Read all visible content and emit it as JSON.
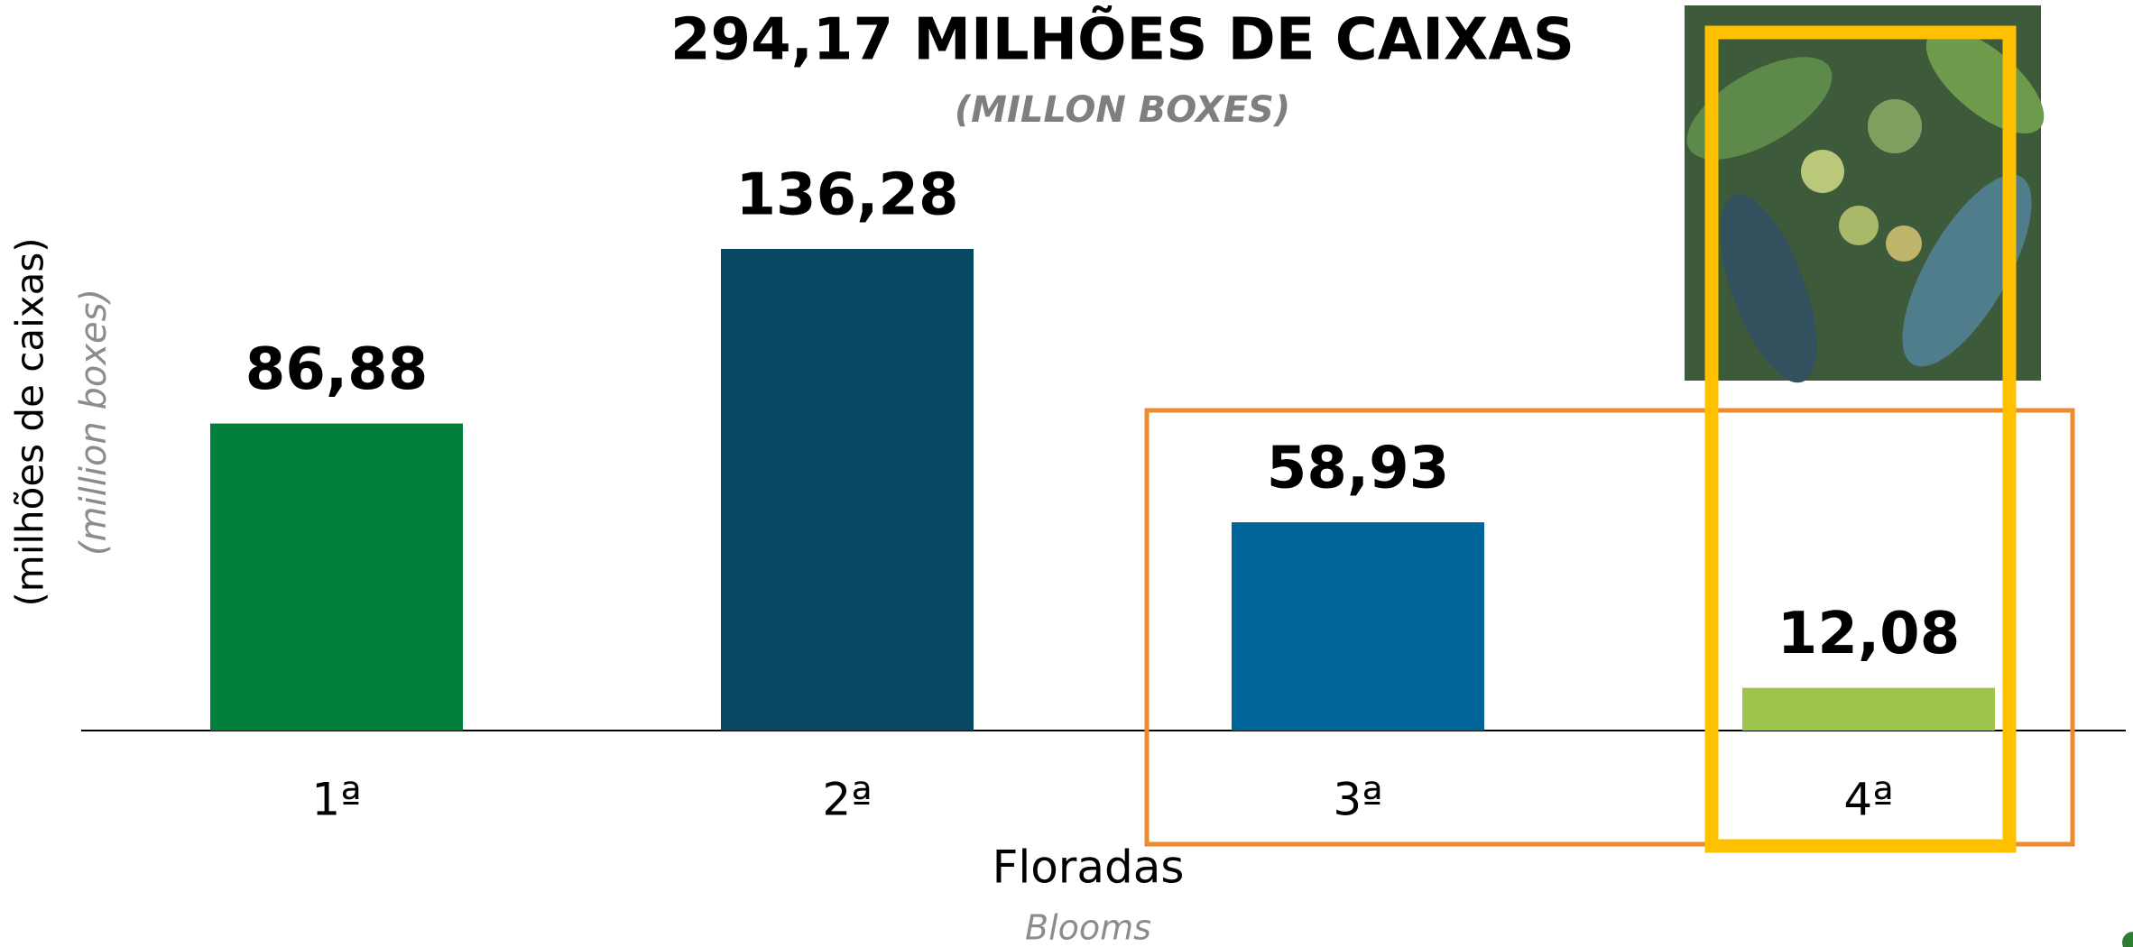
{
  "chart_data": {
    "type": "bar",
    "title": "294,17 MILHÕES DE CAIXAS",
    "subtitle": "(MILLON BOXES)",
    "x_label": "Floradas",
    "x_label_en": "Blooms",
    "y_label": "(milhões de caixas)",
    "y_label_en": "(million boxes)",
    "categories": [
      "1ª",
      "2ª",
      "3ª",
      "4ª"
    ],
    "values": [
      86.88,
      136.28,
      58.93,
      12.08
    ],
    "value_labels": [
      "86,88",
      "136,28",
      "58,93",
      "12,08"
    ],
    "colors": [
      "#00803a",
      "#084862",
      "#006699",
      "#9dc44d"
    ]
  }
}
